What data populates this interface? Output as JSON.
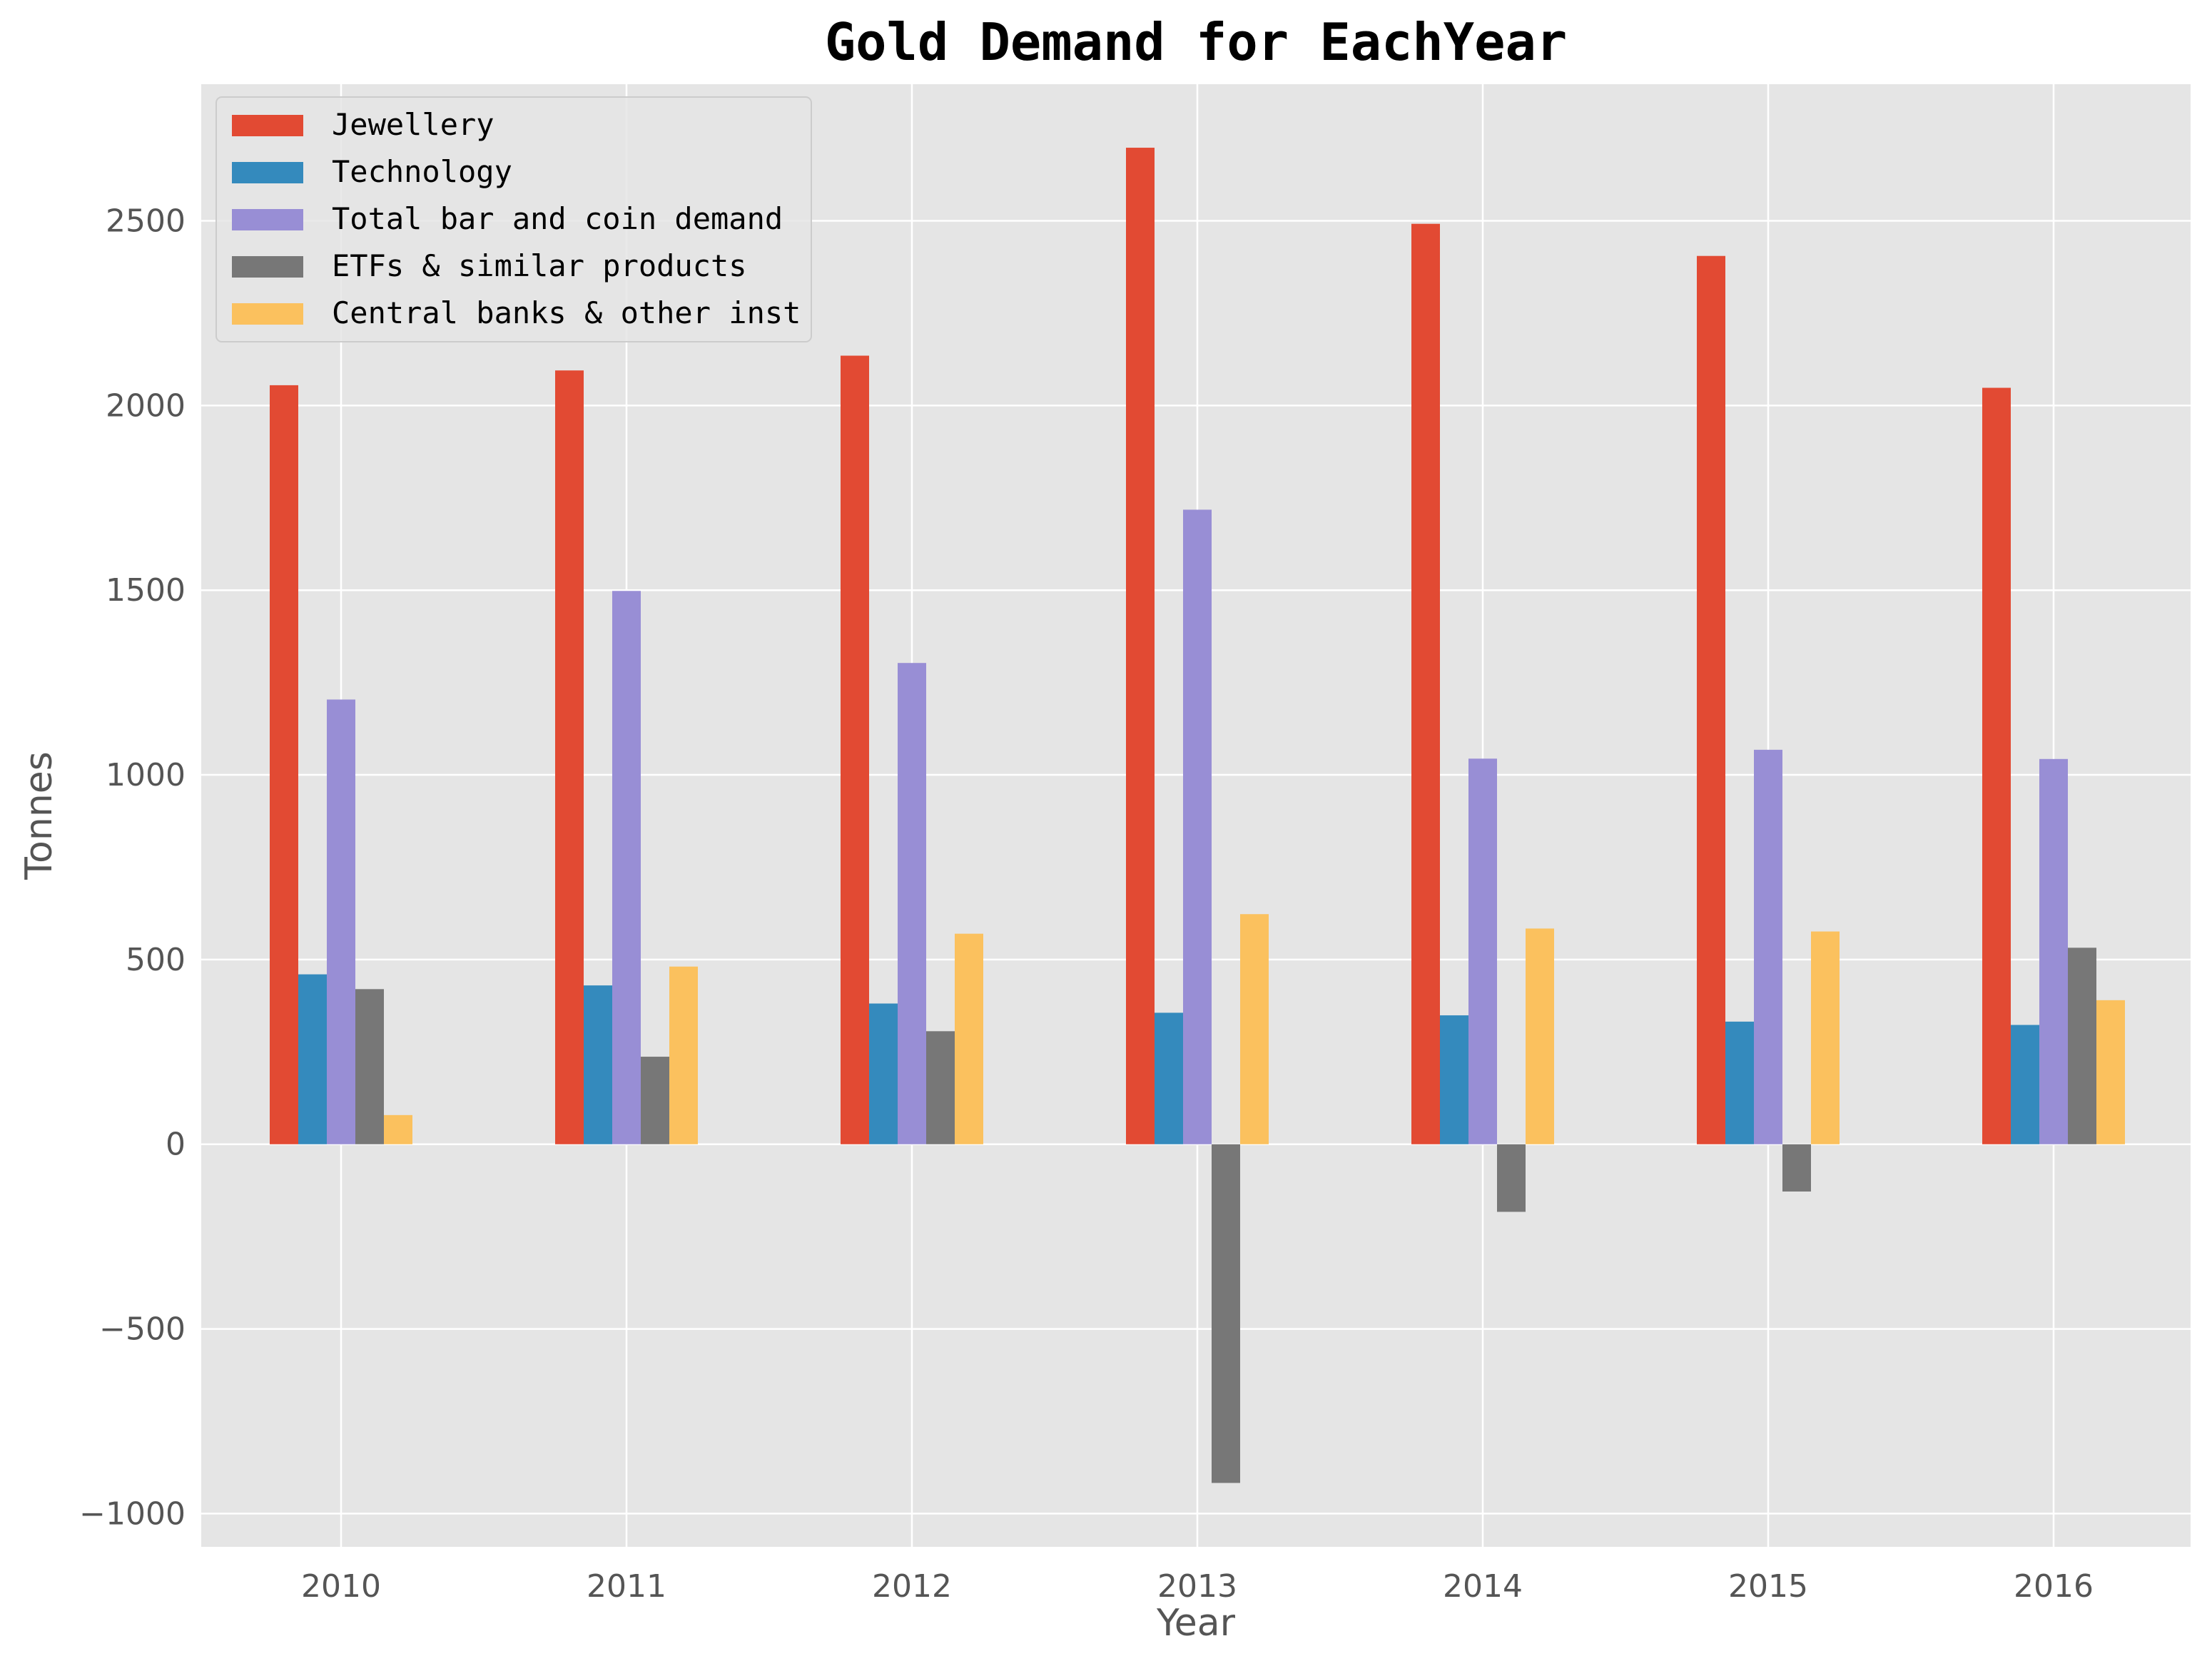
{
  "chart_data": {
    "type": "bar",
    "title": "Gold Demand for EachYear",
    "xlabel": "Year",
    "ylabel": "Tonnes",
    "categories": [
      "2010",
      "2011",
      "2012",
      "2013",
      "2014",
      "2015",
      "2016"
    ],
    "ylim": [
      -1090,
      2870
    ],
    "yticks": [
      -1000,
      -500,
      0,
      500,
      1000,
      1500,
      2000,
      2500
    ],
    "ytick_labels": [
      "−1000",
      "−500",
      "0",
      "500",
      "1000",
      "1500",
      "2000",
      "2500"
    ],
    "grid": true,
    "legend_position": "top-left",
    "background": "#e5e5e5",
    "series": [
      {
        "name": "Jewellery",
        "color": "#e24a33",
        "values": [
          2055,
          2095,
          2135,
          2698,
          2492,
          2405,
          2048
        ]
      },
      {
        "name": "Technology",
        "color": "#348abd",
        "values": [
          460,
          430,
          381,
          356,
          349,
          332,
          323
        ]
      },
      {
        "name": "Total bar and coin demand",
        "color": "#988ed5",
        "values": [
          1204,
          1498,
          1303,
          1718,
          1044,
          1068,
          1043
        ]
      },
      {
        "name": "ETFs & similar products",
        "color": "#777777",
        "values": [
          420,
          237,
          306,
          -917,
          -183,
          -128,
          532
        ]
      },
      {
        "name": "Central banks & other inst",
        "color": "#fbc15e",
        "values": [
          79,
          481,
          570,
          623,
          584,
          576,
          390
        ]
      }
    ]
  }
}
